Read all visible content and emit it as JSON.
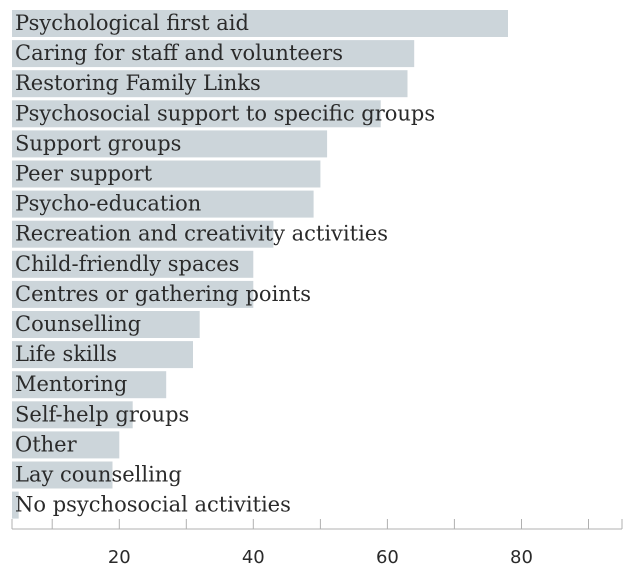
{
  "chart_data": {
    "type": "bar",
    "orientation": "horizontal",
    "categories": [
      "Psychological first aid",
      "Caring for staff and volunteers",
      "Restoring Family Links",
      "Psychosocial support to specific groups",
      "Support groups",
      "Peer support",
      "Psycho-education",
      "Recreation and creativity activities",
      "Child-friendly spaces",
      "Centres or gathering points",
      "Counselling",
      "Life skills",
      "Mentoring",
      "Self-help groups",
      "Other",
      "Lay counselling",
      "No psychosocial activities"
    ],
    "values": [
      78,
      64,
      63,
      59,
      51,
      50,
      49,
      43,
      40,
      40,
      32,
      31,
      27,
      22,
      20,
      19,
      5
    ],
    "xlim": [
      4,
      95
    ],
    "xticks": [
      20,
      40,
      60,
      80
    ],
    "title": "",
    "xlabel": "",
    "ylabel": "",
    "grid": false,
    "colors": {
      "bar": "#ccd5da",
      "text": "#2a2a2a",
      "axis": "#b0b0b0"
    }
  }
}
